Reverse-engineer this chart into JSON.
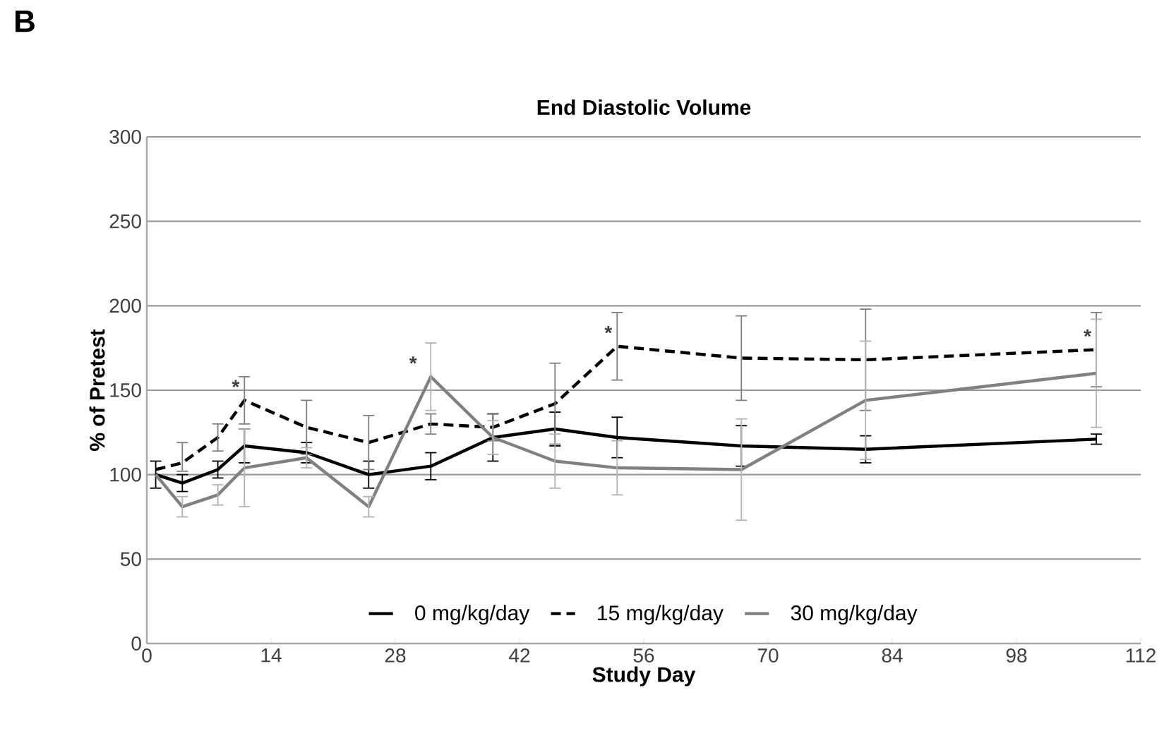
{
  "chart_data": {
    "type": "line",
    "title": "End Diastolic Volume",
    "xlabel": "Study Day",
    "ylabel": "% of Pretest",
    "x": [
      1,
      4,
      8,
      11,
      18,
      25,
      32,
      39,
      46,
      53,
      67,
      81,
      107
    ],
    "series": [
      {
        "name": "0 mg/kg/day",
        "color": "#000000",
        "line_style": "solid",
        "values": [
          100,
          95,
          103,
          117,
          113,
          100,
          105,
          122,
          127,
          122,
          117,
          115,
          121
        ],
        "errors": [
          8,
          5,
          5,
          10,
          6,
          8,
          8,
          14,
          10,
          12,
          12,
          8,
          3
        ]
      },
      {
        "name": "15 mg/kg/day",
        "color": "#000000",
        "line_style": "dashed",
        "values": [
          103,
          107,
          122,
          144,
          128,
          119,
          130,
          128,
          142,
          176,
          169,
          168,
          174
        ],
        "errors": [
          null,
          [
            102,
            119
          ],
          8,
          14,
          16,
          16,
          6,
          8,
          24,
          20,
          25,
          30,
          22
        ]
      },
      {
        "name": "30 mg/kg/day",
        "color": "#808080",
        "line_style": "solid",
        "values": [
          100,
          81,
          88,
          104,
          110,
          81,
          158,
          122,
          108,
          104,
          103,
          144,
          160
        ],
        "errors": [
          null,
          6,
          6,
          23,
          6,
          6,
          20,
          10,
          16,
          16,
          30,
          35,
          32
        ]
      }
    ],
    "annotations": [
      "B",
      "*",
      "*",
      "*",
      "*"
    ],
    "xlim": [
      0,
      112
    ],
    "xticks": [
      0,
      14,
      28,
      42,
      56,
      70,
      84,
      98,
      112
    ],
    "ylim": [
      0,
      300
    ],
    "yticks": [
      0,
      50,
      100,
      150,
      200,
      250,
      300
    ],
    "grid": "y",
    "legend": "bottom",
    "marker": "none"
  }
}
